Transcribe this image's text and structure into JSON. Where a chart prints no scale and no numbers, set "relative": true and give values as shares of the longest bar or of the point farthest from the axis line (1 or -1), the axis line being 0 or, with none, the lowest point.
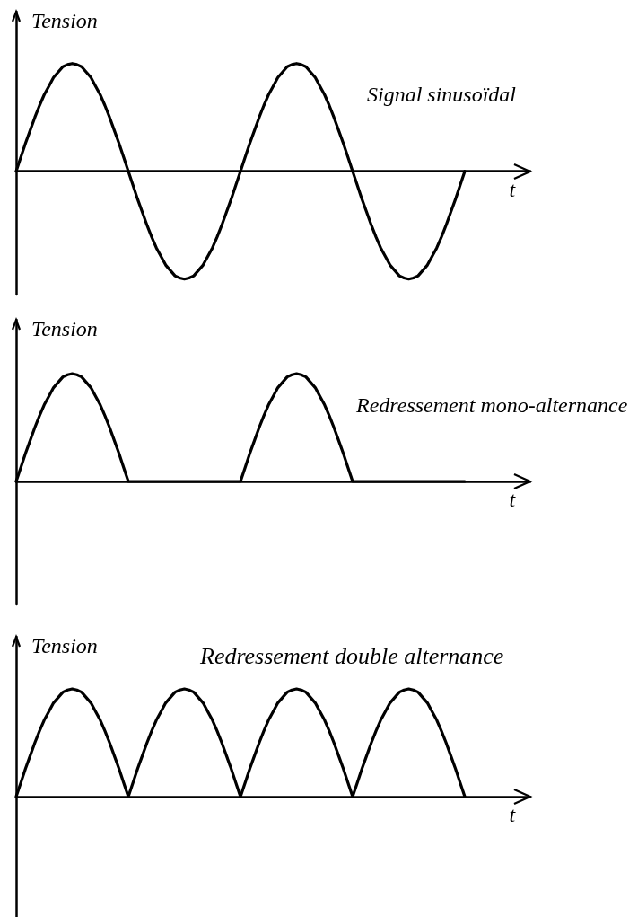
{
  "chart_data": [
    {
      "type": "line",
      "title": "Signal sinusoïdal",
      "xlabel": "t",
      "ylabel": "Tension",
      "relative": true,
      "tick_labels": false,
      "marker": "none",
      "line_style": "solid",
      "categories": [
        null,
        null,
        null,
        null,
        null,
        null,
        null,
        null,
        null,
        null,
        null,
        null,
        null,
        null,
        null,
        null,
        null,
        null,
        null,
        null,
        null,
        null,
        null,
        null,
        null,
        null,
        null,
        null,
        null,
        null,
        null,
        null,
        null,
        null,
        null,
        null,
        null,
        null,
        null,
        null,
        null,
        null,
        null,
        null,
        null,
        null,
        null,
        null,
        null,
        null,
        null,
        null,
        null,
        null,
        null,
        null,
        null,
        null,
        null,
        null,
        null,
        null,
        null,
        null,
        null,
        null,
        null,
        null,
        null,
        null,
        null,
        null,
        null,
        null,
        null,
        null,
        null,
        null,
        null,
        null,
        null,
        null,
        null,
        null,
        null,
        null,
        null,
        null,
        null,
        null,
        null,
        null,
        null,
        null,
        null,
        null,
        null
      ],
      "series": [
        {
          "color": "#000000",
          "values": [
            0,
            0.13,
            0.26,
            0.38,
            0.5,
            0.61,
            0.71,
            0.79,
            0.87,
            0.92,
            0.97,
            0.99,
            1,
            0.99,
            0.97,
            0.92,
            0.87,
            0.79,
            0.71,
            0.61,
            0.5,
            0.38,
            0.26,
            0.13,
            0,
            -0.13,
            -0.26,
            -0.38,
            -0.5,
            -0.61,
            -0.71,
            -0.79,
            -0.87,
            -0.92,
            -0.97,
            -0.99,
            -1,
            -0.99,
            -0.97,
            -0.92,
            -0.87,
            -0.79,
            -0.71,
            -0.61,
            -0.5,
            -0.38,
            -0.26,
            -0.13,
            0,
            0.13,
            0.26,
            0.38,
            0.5,
            0.61,
            0.71,
            0.79,
            0.87,
            0.92,
            0.97,
            0.99,
            1,
            0.99,
            0.97,
            0.92,
            0.87,
            0.79,
            0.71,
            0.61,
            0.5,
            0.38,
            0.26,
            0.13,
            0,
            -0.13,
            -0.26,
            -0.38,
            -0.5,
            -0.61,
            -0.71,
            -0.79,
            -0.87,
            -0.92,
            -0.97,
            -0.99,
            -1,
            -0.99,
            -0.97,
            -0.92,
            -0.87,
            -0.79,
            -0.71,
            -0.61,
            -0.5,
            -0.38,
            -0.26,
            -0.13,
            0
          ]
        }
      ]
    },
    {
      "type": "line",
      "title": "Redressement mono-alternance",
      "xlabel": "t",
      "ylabel": "Tension",
      "relative": true,
      "tick_labels": false,
      "marker": "none",
      "line_style": "solid",
      "categories": [
        null,
        null,
        null,
        null,
        null,
        null,
        null,
        null,
        null,
        null,
        null,
        null,
        null,
        null,
        null,
        null,
        null,
        null,
        null,
        null,
        null,
        null,
        null,
        null,
        null,
        null,
        null,
        null,
        null,
        null,
        null,
        null,
        null,
        null,
        null,
        null,
        null,
        null,
        null,
        null,
        null,
        null,
        null,
        null,
        null,
        null,
        null,
        null,
        null,
        null,
        null,
        null,
        null,
        null,
        null,
        null,
        null,
        null,
        null,
        null,
        null,
        null,
        null,
        null,
        null,
        null,
        null,
        null,
        null,
        null,
        null,
        null,
        null,
        null,
        null,
        null,
        null,
        null,
        null,
        null,
        null,
        null,
        null,
        null,
        null,
        null,
        null,
        null,
        null,
        null,
        null,
        null,
        null,
        null,
        null,
        null,
        null
      ],
      "series": [
        {
          "color": "#000000",
          "values": [
            0,
            0.13,
            0.26,
            0.38,
            0.5,
            0.61,
            0.71,
            0.79,
            0.87,
            0.92,
            0.97,
            0.99,
            1,
            0.99,
            0.97,
            0.92,
            0.87,
            0.79,
            0.71,
            0.61,
            0.5,
            0.38,
            0.26,
            0.13,
            0,
            0,
            0,
            0,
            0,
            0,
            0,
            0,
            0,
            0,
            0,
            0,
            0,
            0,
            0,
            0,
            0,
            0,
            0,
            0,
            0,
            0,
            0,
            0,
            0,
            0.13,
            0.26,
            0.38,
            0.5,
            0.61,
            0.71,
            0.79,
            0.87,
            0.92,
            0.97,
            0.99,
            1,
            0.99,
            0.97,
            0.92,
            0.87,
            0.79,
            0.71,
            0.61,
            0.5,
            0.38,
            0.26,
            0.13,
            0,
            0,
            0,
            0,
            0,
            0,
            0,
            0,
            0,
            0,
            0,
            0,
            0,
            0,
            0,
            0,
            0,
            0,
            0,
            0,
            0,
            0,
            0,
            0,
            0
          ]
        }
      ]
    },
    {
      "type": "line",
      "title": "Redressement double alternance",
      "xlabel": "t",
      "ylabel": "Tension",
      "relative": true,
      "tick_labels": false,
      "marker": "none",
      "line_style": "solid",
      "categories": [
        null,
        null,
        null,
        null,
        null,
        null,
        null,
        null,
        null,
        null,
        null,
        null,
        null,
        null,
        null,
        null,
        null,
        null,
        null,
        null,
        null,
        null,
        null,
        null,
        null,
        null,
        null,
        null,
        null,
        null,
        null,
        null,
        null,
        null,
        null,
        null,
        null,
        null,
        null,
        null,
        null,
        null,
        null,
        null,
        null,
        null,
        null,
        null,
        null,
        null,
        null,
        null,
        null,
        null,
        null,
        null,
        null,
        null,
        null,
        null,
        null,
        null,
        null,
        null,
        null,
        null,
        null,
        null,
        null,
        null,
        null,
        null,
        null,
        null,
        null,
        null,
        null,
        null,
        null,
        null,
        null,
        null,
        null,
        null,
        null,
        null,
        null,
        null,
        null,
        null,
        null,
        null,
        null,
        null,
        null,
        null,
        null
      ],
      "series": [
        {
          "color": "#000000",
          "values": [
            0,
            0.13,
            0.26,
            0.38,
            0.5,
            0.61,
            0.71,
            0.79,
            0.87,
            0.92,
            0.97,
            0.99,
            1,
            0.99,
            0.97,
            0.92,
            0.87,
            0.79,
            0.71,
            0.61,
            0.5,
            0.38,
            0.26,
            0.13,
            0,
            0.13,
            0.26,
            0.38,
            0.5,
            0.61,
            0.71,
            0.79,
            0.87,
            0.92,
            0.97,
            0.99,
            1,
            0.99,
            0.97,
            0.92,
            0.87,
            0.79,
            0.71,
            0.61,
            0.5,
            0.38,
            0.26,
            0.13,
            0,
            0.13,
            0.26,
            0.38,
            0.5,
            0.61,
            0.71,
            0.79,
            0.87,
            0.92,
            0.97,
            0.99,
            1,
            0.99,
            0.97,
            0.92,
            0.87,
            0.79,
            0.71,
            0.61,
            0.5,
            0.38,
            0.26,
            0.13,
            0,
            0.13,
            0.26,
            0.38,
            0.5,
            0.61,
            0.71,
            0.79,
            0.87,
            0.92,
            0.97,
            0.99,
            1,
            0.99,
            0.97,
            0.92,
            0.87,
            0.79,
            0.71,
            0.61,
            0.5,
            0.38,
            0.26,
            0.13,
            0
          ]
        }
      ]
    }
  ]
}
